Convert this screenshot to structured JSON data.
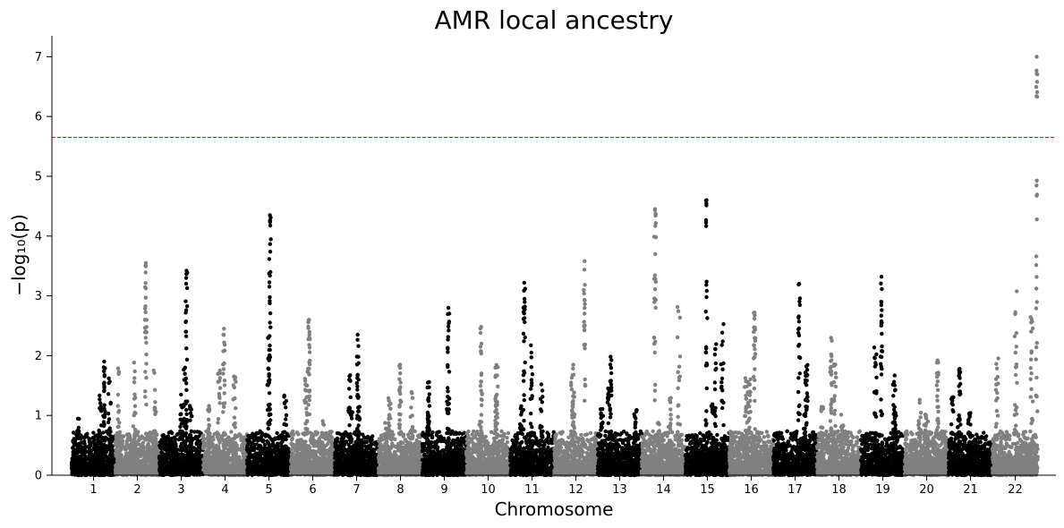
{
  "chart_data": {
    "type": "scatter",
    "title": "AMR local ancestry",
    "xlabel": "Chromosome",
    "ylabel": "−log₁₀(p)",
    "ylim": [
      0,
      7.35
    ],
    "yticks": [
      0,
      1,
      2,
      3,
      4,
      5,
      6,
      7
    ],
    "xticks": [
      "1",
      "2",
      "3",
      "4",
      "5",
      "6",
      "7",
      "8",
      "9",
      "10",
      "11",
      "12",
      "13",
      "14",
      "15",
      "16",
      "17",
      "18",
      "19",
      "20",
      "21",
      "22"
    ],
    "grid": false,
    "legend": "none",
    "threshold": 5.65,
    "colors": {
      "odd_chromosome": "#000000",
      "even_chromosome": "#808080",
      "threshold_line": "#e8121b"
    },
    "chromosome_peaks": [
      {
        "chromosome": "1",
        "max_neg_log10_p": 1.9
      },
      {
        "chromosome": "2",
        "max_neg_log10_p": 3.55
      },
      {
        "chromosome": "3",
        "max_neg_log10_p": 3.42
      },
      {
        "chromosome": "4",
        "max_neg_log10_p": 2.45
      },
      {
        "chromosome": "5",
        "max_neg_log10_p": 4.35
      },
      {
        "chromosome": "6",
        "max_neg_log10_p": 2.6
      },
      {
        "chromosome": "7",
        "max_neg_log10_p": 2.35
      },
      {
        "chromosome": "8",
        "max_neg_log10_p": 1.85
      },
      {
        "chromosome": "9",
        "max_neg_log10_p": 2.8
      },
      {
        "chromosome": "10",
        "max_neg_log10_p": 2.48
      },
      {
        "chromosome": "11",
        "max_neg_log10_p": 3.22
      },
      {
        "chromosome": "12",
        "max_neg_log10_p": 3.58
      },
      {
        "chromosome": "13",
        "max_neg_log10_p": 1.98
      },
      {
        "chromosome": "14",
        "max_neg_log10_p": 4.45
      },
      {
        "chromosome": "15",
        "max_neg_log10_p": 4.6
      },
      {
        "chromosome": "16",
        "max_neg_log10_p": 2.72
      },
      {
        "chromosome": "17",
        "max_neg_log10_p": 3.2
      },
      {
        "chromosome": "18",
        "max_neg_log10_p": 2.3
      },
      {
        "chromosome": "19",
        "max_neg_log10_p": 3.32
      },
      {
        "chromosome": "20",
        "max_neg_log10_p": 1.92
      },
      {
        "chromosome": "21",
        "max_neg_log10_p": 1.78
      },
      {
        "chromosome": "22",
        "max_neg_log10_p": 7.0
      }
    ]
  }
}
